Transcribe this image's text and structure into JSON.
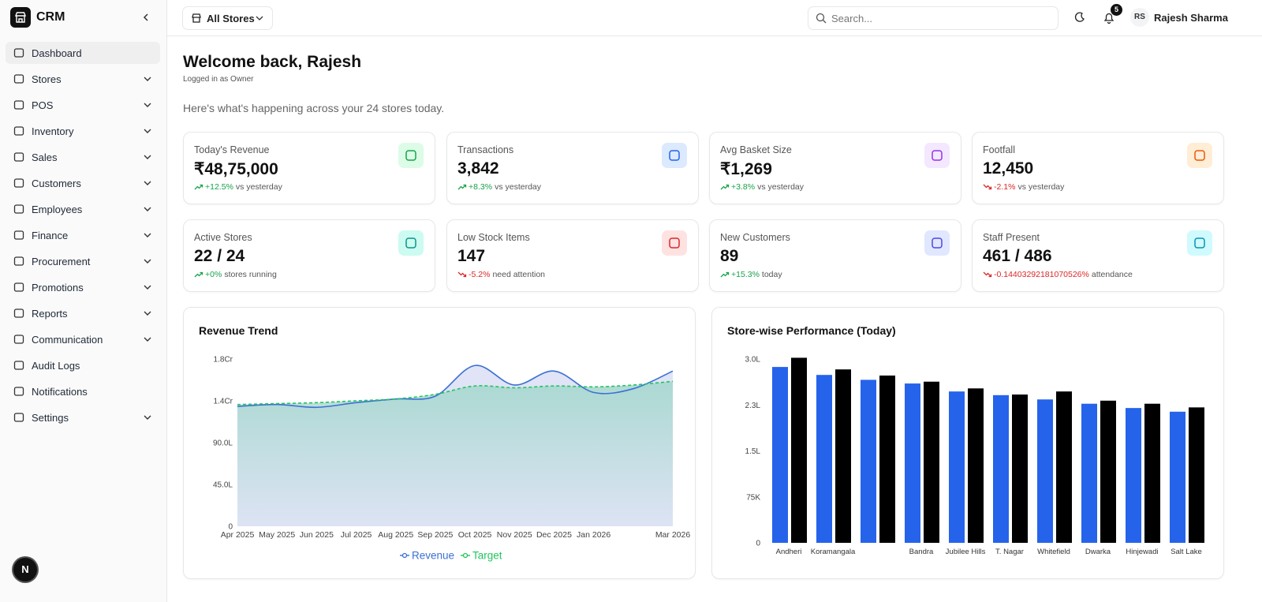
{
  "sidebar": {
    "brand": "CRM",
    "nav": [
      {
        "label": "Dashboard",
        "active": true,
        "submenu": false
      },
      {
        "label": "Stores",
        "active": false,
        "submenu": true
      },
      {
        "label": "POS",
        "active": false,
        "submenu": true
      },
      {
        "label": "Inventory",
        "active": false,
        "submenu": true
      },
      {
        "label": "Sales",
        "active": false,
        "submenu": true
      },
      {
        "label": "Customers",
        "active": false,
        "submenu": true
      },
      {
        "label": "Employees",
        "active": false,
        "submenu": true
      },
      {
        "label": "Finance",
        "active": false,
        "submenu": true
      },
      {
        "label": "Procurement",
        "active": false,
        "submenu": true
      },
      {
        "label": "Promotions",
        "active": false,
        "submenu": true
      },
      {
        "label": "Reports",
        "active": false,
        "submenu": true
      },
      {
        "label": "Communication",
        "active": false,
        "submenu": true
      },
      {
        "label": "Audit Logs",
        "active": false,
        "submenu": false
      },
      {
        "label": "Notifications",
        "active": false,
        "submenu": false
      },
      {
        "label": "Settings",
        "active": false,
        "submenu": true
      }
    ]
  },
  "dev_badge": "N",
  "topbar": {
    "store_selector": "All Stores",
    "search_placeholder": "Search...",
    "notification_count": "5",
    "user_initials": "RS",
    "user_name": "Rajesh Sharma"
  },
  "welcome": {
    "title": "Welcome back, Rajesh",
    "subtitle": "Logged in as Owner",
    "summary": "Here's what's happening across your 24 stores today."
  },
  "kpis": [
    {
      "label": "Today's Revenue",
      "value": "₹48,75,000",
      "change": "+12.5%",
      "note": "vs yesterday",
      "trend": "up",
      "color": "#16a34a",
      "bg": "#dcfce7"
    },
    {
      "label": "Transactions",
      "value": "3,842",
      "change": "+8.3%",
      "note": "vs yesterday",
      "trend": "up",
      "color": "#2563eb",
      "bg": "#dbeafe"
    },
    {
      "label": "Avg Basket Size",
      "value": "₹1,269",
      "change": "+3.8%",
      "note": "vs yesterday",
      "trend": "up",
      "color": "#9333ea",
      "bg": "#f3e8ff"
    },
    {
      "label": "Footfall",
      "value": "12,450",
      "change": "-2.1%",
      "note": "vs yesterday",
      "trend": "down",
      "color": "#ea580c",
      "bg": "#ffedd5"
    },
    {
      "label": "Active Stores",
      "value": "22 / 24",
      "change": "+0%",
      "note": "stores running",
      "trend": "up",
      "color": "#0d9488",
      "bg": "#ccfbf1"
    },
    {
      "label": "Low Stock Items",
      "value": "147",
      "change": "-5.2%",
      "note": "need attention",
      "trend": "down",
      "color": "#dc2626",
      "bg": "#fee2e2"
    },
    {
      "label": "New Customers",
      "value": "89",
      "change": "+15.3%",
      "note": "today",
      "trend": "up",
      "color": "#4f46e5",
      "bg": "#e0e7ff"
    },
    {
      "label": "Staff Present",
      "value": "461 / 486",
      "change": "-0.14403292181070526%",
      "note": "attendance",
      "trend": "down",
      "color": "#0891b2",
      "bg": "#cffafe"
    }
  ],
  "chart_data": [
    {
      "type": "area",
      "title": "Revenue Trend",
      "categories": [
        "Apr 2025",
        "May 2025",
        "Jun 2025",
        "Jul 2025",
        "Aug 2025",
        "Sep 2025",
        "Oct 2025",
        "Nov 2025",
        "Dec 2025",
        "Jan 2026",
        null,
        "Mar 2026"
      ],
      "series": [
        {
          "name": "Revenue",
          "color": "#3b6fd4",
          "fill": "#dde1f5",
          "values": [
            12900000,
            13100000,
            12800000,
            13300000,
            13700000,
            14000000,
            17300000,
            15200000,
            16700000,
            14400000,
            14800000,
            16700000
          ]
        },
        {
          "name": "Target",
          "color": "#22c55e",
          "fill": "#a8d8d0",
          "dashed": true,
          "values": [
            13100000,
            13200000,
            13300000,
            13500000,
            13700000,
            14200000,
            15100000,
            14900000,
            15100000,
            15000000,
            15200000,
            15600000
          ]
        }
      ],
      "ylim": [
        0,
        18000000
      ],
      "yticks": [
        0,
        {
          "value": 4500000,
          "label": "45.0L"
        },
        {
          "value": 9000000,
          "label": "90.0L"
        },
        {
          "value": 13500000,
          "label": "1.4Cr"
        },
        {
          "value": 18000000,
          "label": "1.8Cr"
        }
      ],
      "grid": false,
      "legend": "bottom"
    },
    {
      "type": "bar",
      "title": "Store-wise Performance (Today)",
      "categories": [
        "Andheri",
        "Koramangala",
        null,
        "Bandra",
        "Jubilee Hills",
        "T. Nagar",
        "Whitefield",
        "Dwarka",
        "Hinjewadi",
        "Salt Lake"
      ],
      "series": [
        {
          "color": "#2563eb",
          "values": [
            287000,
            274000,
            266000,
            260000,
            247000,
            241000,
            234000,
            227000,
            220000,
            214000
          ]
        },
        {
          "color": "#000000",
          "values": [
            302000,
            283000,
            273000,
            263000,
            252000,
            242000,
            247000,
            232000,
            227000,
            221000
          ]
        }
      ],
      "ylim": [
        0,
        300000
      ],
      "yticks": [
        0,
        {
          "value": 75000,
          "label": "75K"
        },
        {
          "value": 150000,
          "label": "1.5L"
        },
        {
          "value": 225000,
          "label": "2.3L"
        },
        {
          "value": 300000,
          "label": "3.0L"
        }
      ],
      "grid": false
    }
  ]
}
